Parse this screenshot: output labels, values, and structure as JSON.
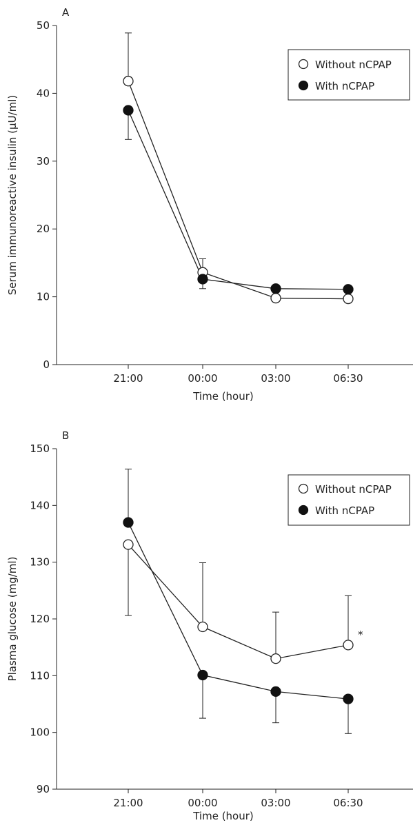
{
  "chart_data": [
    {
      "type": "line",
      "panel_label": "A",
      "title": "",
      "xlabel": "Time (hour)",
      "ylabel": "Serum immunoreactive insulin (µU/ml)",
      "categories": [
        "21:00",
        "00:00",
        "03:00",
        "06:30"
      ],
      "ylim": [
        0,
        50
      ],
      "yticks": [
        0,
        10,
        20,
        30,
        40,
        50
      ],
      "grid": false,
      "legend_position": "top-right",
      "series": [
        {
          "name": "Without nCPAP",
          "marker": "open-circle",
          "values": [
            41.8,
            13.6,
            9.8,
            9.7
          ],
          "error_upper": [
            48.9,
            15.6,
            null,
            null
          ],
          "error_lower": [
            null,
            null,
            null,
            null
          ]
        },
        {
          "name": "With nCPAP",
          "marker": "filled-circle",
          "values": [
            37.5,
            12.6,
            11.2,
            11.1
          ],
          "error_upper": [
            null,
            null,
            null,
            null
          ],
          "error_lower": [
            33.2,
            11.2,
            null,
            null
          ]
        }
      ],
      "annotations": []
    },
    {
      "type": "line",
      "panel_label": "B",
      "title": "",
      "xlabel": "Time (hour)",
      "ylabel": "Plasma glucose (mg/ml)",
      "categories": [
        "21:00",
        "00:00",
        "03:00",
        "06:30"
      ],
      "ylim": [
        90,
        150
      ],
      "yticks": [
        90,
        100,
        110,
        120,
        130,
        140,
        150
      ],
      "grid": false,
      "legend_position": "top-right",
      "series": [
        {
          "name": "Without nCPAP",
          "marker": "open-circle",
          "values": [
            133.1,
            118.6,
            113.0,
            115.4
          ],
          "error_upper": [
            null,
            129.9,
            121.2,
            124.1
          ],
          "error_lower": [
            120.6,
            null,
            null,
            null
          ]
        },
        {
          "name": "With nCPAP",
          "marker": "filled-circle",
          "values": [
            137.0,
            110.1,
            107.2,
            105.9
          ],
          "error_upper": [
            146.4,
            null,
            null,
            null
          ],
          "error_lower": [
            null,
            102.5,
            101.7,
            99.8
          ]
        }
      ],
      "annotations": [
        {
          "text": "*",
          "series_index": 0,
          "category_index": 3
        }
      ]
    }
  ]
}
